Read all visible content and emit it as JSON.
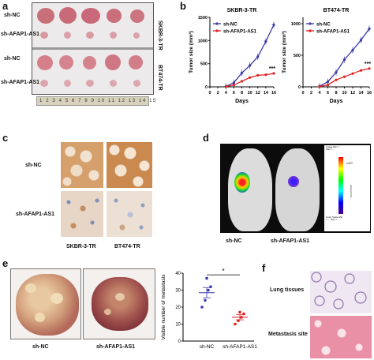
{
  "panels": {
    "a": {
      "letter": "a",
      "group_labels": [
        "sh-NC",
        "sh-AFAP1-AS1",
        "sh-NC",
        "sh-AFAP1-AS1"
      ],
      "side_labels": [
        "SKBR-3-TR",
        "BT474-TR"
      ],
      "ruler_numbers": "1 2 3 4 5 6 7 8 9 10 11 12 13 14 15"
    },
    "b": {
      "letter": "b"
    },
    "c": {
      "letter": "c",
      "row_labels": [
        "sh-NC",
        "sh-AFAP1-AS1"
      ],
      "col_labels": [
        "SKBR-3-TR",
        "BT474-TR"
      ]
    },
    "d": {
      "letter": "d",
      "labels": [
        "sh-NC",
        "sh-AFAP1-AS1"
      ],
      "scale_top": "Image Min = ... Max = ...",
      "scale_unit": "p/sec/cm²/sr",
      "scale_bottom": "Color Scale Min = ... Max = ...",
      "scale_ticks": [
        "8.0",
        "7.0",
        "6.0",
        "5.0",
        "4.0",
        "3.0",
        "2.0",
        "1.0"
      ],
      "scale_exp": "x10⁶"
    },
    "e": {
      "letter": "e",
      "labels": [
        "sh-NC",
        "sh-AFAP1-AS1"
      ]
    },
    "f": {
      "letter": "f",
      "labels": [
        "Lung tissues",
        "Metastasis site"
      ]
    }
  },
  "chart_data": [
    {
      "type": "line",
      "title": "SKBR-3-TR",
      "xlabel": "Days",
      "ylabel": "Tumor size (mm³)",
      "x": [
        4,
        6,
        8,
        10,
        12,
        14,
        16
      ],
      "xticks": [
        0,
        2,
        4,
        6,
        8,
        10,
        12,
        14,
        16
      ],
      "yticks": [
        0,
        500,
        1000,
        1500
      ],
      "ylim": [
        0,
        1500
      ],
      "xlim": [
        0,
        16
      ],
      "series": [
        {
          "name": "sh-NC",
          "color": "#3a3aa8",
          "values": [
            10,
            90,
            300,
            460,
            650,
            980,
            1340
          ]
        },
        {
          "name": "sh-AFAP1-AS1",
          "color": "#e02020",
          "values": [
            5,
            40,
            120,
            200,
            250,
            260,
            290
          ]
        }
      ],
      "annotation": "***",
      "legend": "top-left"
    },
    {
      "type": "line",
      "title": "BT474-TR",
      "xlabel": "Days",
      "ylabel": "Tumor size (mm³)",
      "x": [
        4,
        6,
        8,
        10,
        12,
        14,
        16
      ],
      "xticks": [
        0,
        2,
        4,
        6,
        8,
        10,
        12,
        14,
        16
      ],
      "yticks": [
        0,
        500,
        1000
      ],
      "ylim": [
        0,
        1100
      ],
      "xlim": [
        0,
        16
      ],
      "series": [
        {
          "name": "sh-NC",
          "color": "#3a3aa8",
          "values": [
            10,
            80,
            230,
            430,
            580,
            740,
            920
          ]
        },
        {
          "name": "sh-AFAP1-AS1",
          "color": "#e02020",
          "values": [
            5,
            30,
            110,
            160,
            210,
            260,
            290
          ]
        }
      ],
      "annotation": "***",
      "legend": "top-left"
    },
    {
      "type": "scatter",
      "title": "",
      "xlabel": "",
      "ylabel": "Visible number of metastasis",
      "categories": [
        "sh-NC",
        "sh-AFAP1-AS1"
      ],
      "yticks": [
        0,
        10,
        20,
        30,
        40
      ],
      "ylim": [
        0,
        40
      ],
      "series": [
        {
          "name": "sh-NC",
          "color": "#3a3aa8",
          "values": [
            20,
            24,
            30,
            32,
            37
          ],
          "mean": 28.5,
          "sem": 3
        },
        {
          "name": "sh-AFAP1-AS1",
          "color": "#e02020",
          "values": [
            10,
            12,
            14,
            16,
            17
          ],
          "mean": 14,
          "sem": 1.5
        }
      ],
      "annotation": "*"
    }
  ]
}
